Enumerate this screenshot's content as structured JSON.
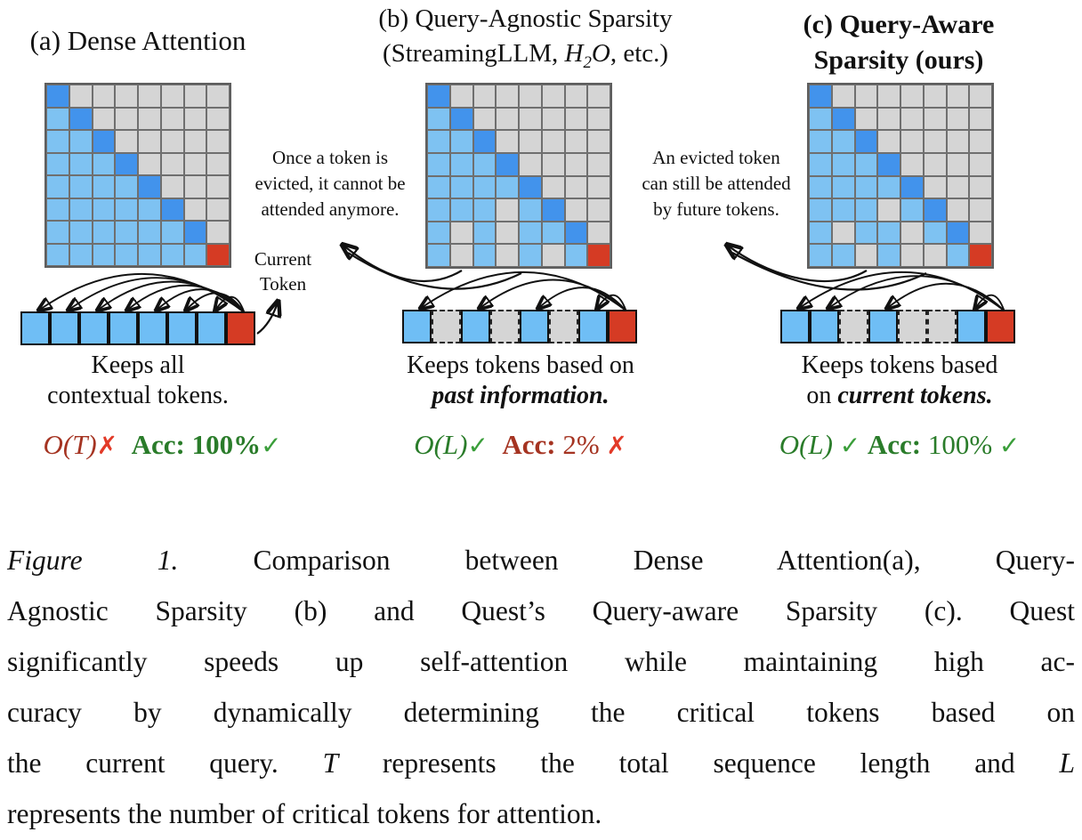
{
  "colors": {
    "diag_blue": "#4293ec",
    "context_blue": "#7ec2f2",
    "token_blue": "#6fbef5",
    "evicted_gray": "#d5d5d5",
    "current_red": "#d53b24",
    "grid_line": "#6f6f6f",
    "green": "#2a7c2a",
    "check_green": "#3a9e3a",
    "maroon": "#a53422",
    "bright_red": "#e23a28"
  },
  "panels": [
    {
      "id": "a",
      "title_lines": [
        [
          {
            "t": "(a) Dense Attention",
            "s": ""
          }
        ]
      ],
      "matrix": [
        "DGGGGGGG",
        "LDGGGGGG",
        "LLDGGGGG",
        "LLLDGGGG",
        "LLLLDGGG",
        "LLLLLDGG",
        "LLLLLLDG",
        "LLLLLLLR"
      ],
      "tokens": "KKKKKKKC",
      "keeps_lines": [
        [
          {
            "t": "Keeps all",
            "s": ""
          }
        ],
        [
          {
            "t": "contextual tokens.",
            "s": ""
          }
        ]
      ],
      "metrics": [
        {
          "t": "O(T)",
          "s": "om"
        },
        {
          "t": "✗",
          "s": "xb"
        },
        {
          "t": "  ",
          "s": ""
        },
        {
          "t": "Acc: 100%",
          "s": "ag"
        },
        {
          "t": "✓",
          "s": "cg"
        }
      ]
    },
    {
      "id": "b",
      "title_lines": [
        [
          {
            "t": "(b) Query-Agnostic Sparsity",
            "s": ""
          }
        ],
        [
          {
            "t": "(StreamingLLM, ",
            "s": ""
          },
          {
            "t": "H",
            "s": "math"
          },
          {
            "t": "2",
            "s": "sub"
          },
          {
            "t": "O",
            "s": "math"
          },
          {
            "t": ", etc.)",
            "s": ""
          }
        ]
      ],
      "matrix": [
        "DGGGGGGG",
        "LDGGGGGG",
        "LLDGGGGG",
        "LLLDGGGG",
        "LLLLDGGG",
        "LLLGLDGG",
        "LGLGLLDG",
        "LGLGLGLR"
      ],
      "tokens": "KEKEKEKC",
      "keeps_lines": [
        [
          {
            "t": "Keeps tokens based on",
            "s": ""
          }
        ],
        [
          {
            "t": "past information.",
            "s": "bi"
          }
        ]
      ],
      "metrics": [
        {
          "t": "O(L)",
          "s": "og"
        },
        {
          "t": "✓",
          "s": "cg"
        },
        {
          "t": "  ",
          "s": ""
        },
        {
          "t": "Acc:",
          "s": "am"
        },
        {
          "t": " 2% ",
          "s": "m"
        },
        {
          "t": "✗",
          "s": "xb"
        }
      ]
    },
    {
      "id": "c",
      "title_lines": [
        [
          {
            "t": "(c) Query-Aware",
            "s": "b"
          }
        ],
        [
          {
            "t": "Sparsity (ours)",
            "s": "b"
          }
        ]
      ],
      "matrix": [
        "DGGGGGGG",
        "LDGGGGGG",
        "LLDGGGGG",
        "LLLDGGGG",
        "LLLLDGGG",
        "LLLGLDGG",
        "LGLLGLDG",
        "LLGLGGLR"
      ],
      "tokens": "KKEKEEKC",
      "keeps_lines": [
        [
          {
            "t": "Keeps tokens based",
            "s": ""
          }
        ],
        [
          {
            "t": "on ",
            "s": ""
          },
          {
            "t": "current tokens.",
            "s": "bi"
          }
        ]
      ],
      "metrics": [
        {
          "t": "O(L)",
          "s": "og"
        },
        {
          "t": " ",
          "s": ""
        },
        {
          "t": "✓",
          "s": "cg"
        },
        {
          "t": " ",
          "s": ""
        },
        {
          "t": "Acc:",
          "s": "ag"
        },
        {
          "t": " 100% ",
          "s": "g"
        },
        {
          "t": "✓",
          "s": "cg"
        }
      ]
    }
  ],
  "annotations": {
    "b": {
      "lines": [
        "Once a token is",
        "evicted, it cannot be",
        "attended anymore."
      ]
    },
    "c": {
      "lines": [
        "An evicted token",
        "can still be attended",
        "by future tokens."
      ]
    }
  },
  "current_token": {
    "lines": [
      "Current",
      "Token"
    ]
  },
  "caption": {
    "label": "Figure 1.",
    "lines": [
      [
        {
          "t": "Figure 1.",
          "s": "italic"
        },
        {
          "t": " Comparison between Dense Attention(a), Query-",
          "s": ""
        }
      ],
      [
        {
          "t": "Agnostic Sparsity (b) and Quest’s Query-aware Sparsity (c). Quest",
          "s": ""
        }
      ],
      [
        {
          "t": "significantly speeds up self-attention while maintaining high ac-",
          "s": ""
        }
      ],
      [
        {
          "t": "curacy by dynamically determining the critical tokens based on",
          "s": ""
        }
      ],
      [
        {
          "t": "the current query. ",
          "s": ""
        },
        {
          "t": "T",
          "s": "math"
        },
        {
          "t": " represents the total sequence length and ",
          "s": ""
        },
        {
          "t": "L",
          "s": "math"
        }
      ],
      [
        {
          "t": "represents the number of critical tokens for attention.",
          "s": ""
        }
      ]
    ]
  }
}
